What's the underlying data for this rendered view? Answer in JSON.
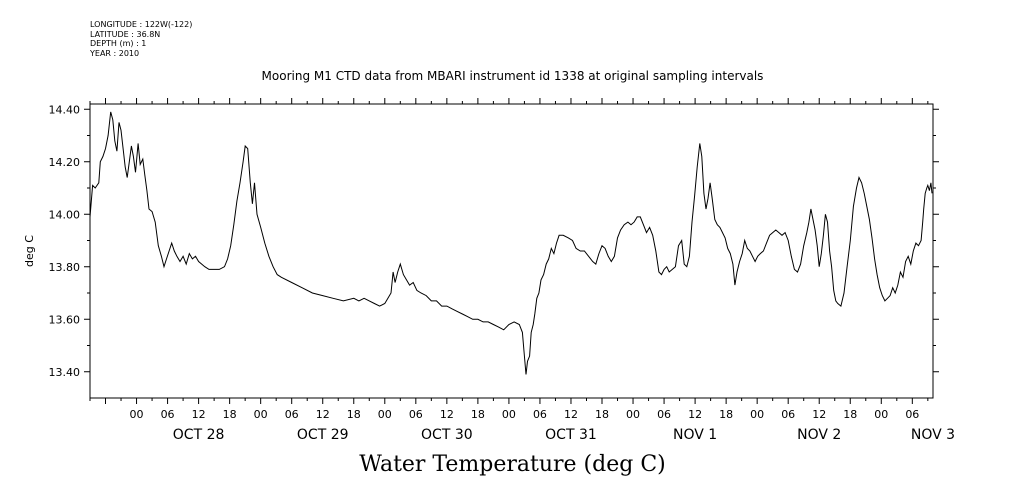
{
  "meta_lines": {
    "longitude": "LONGITUDE : 122W(-122)",
    "latitude": "LATITUDE : 36.8N",
    "depth": "DEPTH (m) : 1",
    "year": "YEAR : 2010"
  },
  "chart_data": {
    "type": "line",
    "title": "Mooring M1 CTD data from MBARI instrument id 1338 at original sampling intervals",
    "xlabel": "Water Temperature (deg C)",
    "ylabel": "deg C",
    "yticks": [
      "13.40",
      "13.60",
      "13.80",
      "14.00",
      "14.20",
      "14.40"
    ],
    "ylim": [
      13.3,
      14.42
    ],
    "xlim_hours": [
      -9,
      154
    ],
    "x_hour_labels": [
      "00",
      "06",
      "12",
      "18",
      "00",
      "06",
      "12",
      "18",
      "00",
      "06",
      "12",
      "18",
      "00",
      "06",
      "12",
      "18",
      "00",
      "06",
      "12",
      "18",
      "00",
      "06",
      "12",
      "18",
      "00",
      "06"
    ],
    "x_day_labels": [
      "OCT 28",
      "OCT 29",
      "OCT 30",
      "OCT 31",
      "NOV  1",
      "NOV  2",
      "NOV  3"
    ],
    "x_unit": "hours since OCT 28 00:00",
    "series": [
      {
        "points": [
          [
            -9,
            13.99
          ],
          [
            -8.5,
            14.11
          ],
          [
            -8,
            14.1
          ],
          [
            -7.3,
            14.12
          ],
          [
            -7,
            14.2
          ],
          [
            -6.5,
            14.22
          ],
          [
            -6,
            14.25
          ],
          [
            -5.5,
            14.3
          ],
          [
            -5,
            14.39
          ],
          [
            -4.6,
            14.36
          ],
          [
            -4.2,
            14.28
          ],
          [
            -3.8,
            14.24
          ],
          [
            -3.4,
            14.35
          ],
          [
            -3,
            14.32
          ],
          [
            -2.6,
            14.25
          ],
          [
            -2.2,
            14.18
          ],
          [
            -1.8,
            14.14
          ],
          [
            -1.4,
            14.2
          ],
          [
            -1,
            14.26
          ],
          [
            -0.6,
            14.22
          ],
          [
            -0.2,
            14.16
          ],
          [
            0.3,
            14.27
          ],
          [
            0.7,
            14.19
          ],
          [
            1.2,
            14.21
          ],
          [
            1.6,
            14.15
          ],
          [
            2,
            14.09
          ],
          [
            2.4,
            14.02
          ],
          [
            3,
            14.01
          ],
          [
            3.6,
            13.97
          ],
          [
            4.2,
            13.88
          ],
          [
            4.8,
            13.84
          ],
          [
            5.3,
            13.8
          ],
          [
            5.8,
            13.83
          ],
          [
            6.3,
            13.86
          ],
          [
            6.8,
            13.89
          ],
          [
            7.3,
            13.86
          ],
          [
            7.8,
            13.84
          ],
          [
            8.4,
            13.82
          ],
          [
            9,
            13.84
          ],
          [
            9.6,
            13.81
          ],
          [
            10.2,
            13.85
          ],
          [
            10.8,
            13.83
          ],
          [
            11.4,
            13.84
          ],
          [
            12,
            13.82
          ],
          [
            12.6,
            13.81
          ],
          [
            13.2,
            13.8
          ],
          [
            14,
            13.79
          ],
          [
            15,
            13.79
          ],
          [
            16,
            13.79
          ],
          [
            17,
            13.8
          ],
          [
            17.6,
            13.83
          ],
          [
            18.2,
            13.88
          ],
          [
            18.8,
            13.96
          ],
          [
            19.4,
            14.05
          ],
          [
            20,
            14.12
          ],
          [
            20.6,
            14.2
          ],
          [
            21,
            14.26
          ],
          [
            21.5,
            14.25
          ],
          [
            22,
            14.12
          ],
          [
            22.4,
            14.04
          ],
          [
            22.8,
            14.12
          ],
          [
            23.3,
            14.0
          ],
          [
            24,
            13.95
          ],
          [
            24.8,
            13.89
          ],
          [
            25.6,
            13.84
          ],
          [
            26.4,
            13.8
          ],
          [
            27.2,
            13.77
          ],
          [
            28,
            13.76
          ],
          [
            30,
            13.74
          ],
          [
            32,
            13.72
          ],
          [
            34,
            13.7
          ],
          [
            36,
            13.69
          ],
          [
            38,
            13.68
          ],
          [
            40,
            13.67
          ],
          [
            42,
            13.68
          ],
          [
            43,
            13.67
          ],
          [
            44,
            13.68
          ],
          [
            45,
            13.67
          ],
          [
            46,
            13.66
          ],
          [
            47,
            13.65
          ],
          [
            48,
            13.66
          ],
          [
            48.6,
            13.68
          ],
          [
            49.2,
            13.7
          ],
          [
            49.6,
            13.78
          ],
          [
            50,
            13.74
          ],
          [
            50.5,
            13.78
          ],
          [
            51,
            13.81
          ],
          [
            51.6,
            13.77
          ],
          [
            52.2,
            13.75
          ],
          [
            52.8,
            13.73
          ],
          [
            53.5,
            13.74
          ],
          [
            54.2,
            13.71
          ],
          [
            55,
            13.7
          ],
          [
            56,
            13.69
          ],
          [
            57,
            13.67
          ],
          [
            58,
            13.67
          ],
          [
            59,
            13.65
          ],
          [
            60,
            13.65
          ],
          [
            61,
            13.64
          ],
          [
            62,
            13.63
          ],
          [
            63,
            13.62
          ],
          [
            64,
            13.61
          ],
          [
            65,
            13.6
          ],
          [
            66,
            13.6
          ],
          [
            67,
            13.59
          ],
          [
            68,
            13.59
          ],
          [
            69,
            13.58
          ],
          [
            70,
            13.57
          ],
          [
            71,
            13.56
          ],
          [
            72,
            13.58
          ],
          [
            73,
            13.59
          ],
          [
            74,
            13.58
          ],
          [
            74.6,
            13.55
          ],
          [
            75,
            13.46
          ],
          [
            75.3,
            13.39
          ],
          [
            75.6,
            13.44
          ],
          [
            76,
            13.46
          ],
          [
            76.3,
            13.55
          ],
          [
            76.7,
            13.58
          ],
          [
            77,
            13.62
          ],
          [
            77.4,
            13.68
          ],
          [
            77.8,
            13.7
          ],
          [
            78.2,
            13.75
          ],
          [
            78.7,
            13.77
          ],
          [
            79.2,
            13.81
          ],
          [
            79.7,
            13.83
          ],
          [
            80.2,
            13.87
          ],
          [
            80.7,
            13.85
          ],
          [
            81.2,
            13.89
          ],
          [
            81.7,
            13.92
          ],
          [
            82.5,
            13.92
          ],
          [
            83.5,
            13.91
          ],
          [
            84.3,
            13.9
          ],
          [
            85,
            13.87
          ],
          [
            85.8,
            13.86
          ],
          [
            86.6,
            13.86
          ],
          [
            87.4,
            13.84
          ],
          [
            88.2,
            13.82
          ],
          [
            88.8,
            13.81
          ],
          [
            89.4,
            13.85
          ],
          [
            90,
            13.88
          ],
          [
            90.6,
            13.87
          ],
          [
            91.2,
            13.84
          ],
          [
            91.8,
            13.82
          ],
          [
            92.4,
            13.84
          ],
          [
            93,
            13.91
          ],
          [
            93.6,
            13.94
          ],
          [
            94.3,
            13.96
          ],
          [
            95,
            13.97
          ],
          [
            95.6,
            13.96
          ],
          [
            96.2,
            13.97
          ],
          [
            96.8,
            13.99
          ],
          [
            97.4,
            13.99
          ],
          [
            98,
            13.96
          ],
          [
            98.6,
            13.93
          ],
          [
            99.2,
            13.95
          ],
          [
            99.8,
            13.92
          ],
          [
            100.4,
            13.86
          ],
          [
            101,
            13.78
          ],
          [
            101.5,
            13.77
          ],
          [
            102,
            13.79
          ],
          [
            102.5,
            13.8
          ],
          [
            103,
            13.78
          ],
          [
            103.6,
            13.79
          ],
          [
            104.2,
            13.8
          ],
          [
            104.8,
            13.88
          ],
          [
            105.4,
            13.9
          ],
          [
            105.9,
            13.81
          ],
          [
            106.4,
            13.8
          ],
          [
            106.9,
            13.84
          ],
          [
            107.4,
            13.97
          ],
          [
            107.9,
            14.07
          ],
          [
            108.4,
            14.18
          ],
          [
            108.9,
            14.27
          ],
          [
            109.3,
            14.22
          ],
          [
            109.7,
            14.08
          ],
          [
            110.1,
            14.02
          ],
          [
            110.5,
            14.06
          ],
          [
            110.9,
            14.12
          ],
          [
            111.3,
            14.06
          ],
          [
            111.8,
            13.98
          ],
          [
            112.3,
            13.96
          ],
          [
            112.8,
            13.95
          ],
          [
            113.3,
            13.93
          ],
          [
            113.8,
            13.91
          ],
          [
            114.3,
            13.87
          ],
          [
            114.8,
            13.85
          ],
          [
            115.3,
            13.81
          ],
          [
            115.7,
            13.73
          ],
          [
            116.1,
            13.78
          ],
          [
            116.6,
            13.82
          ],
          [
            117.1,
            13.85
          ],
          [
            117.6,
            13.9
          ],
          [
            118.1,
            13.87
          ],
          [
            118.6,
            13.86
          ],
          [
            119.1,
            13.84
          ],
          [
            119.6,
            13.82
          ],
          [
            120.1,
            13.84
          ],
          [
            120.6,
            13.85
          ],
          [
            121.2,
            13.86
          ],
          [
            121.8,
            13.89
          ],
          [
            122.4,
            13.92
          ],
          [
            123,
            13.93
          ],
          [
            123.6,
            13.94
          ],
          [
            124.2,
            13.93
          ],
          [
            124.8,
            13.92
          ],
          [
            125.4,
            13.93
          ],
          [
            126,
            13.9
          ],
          [
            126.6,
            13.84
          ],
          [
            127.2,
            13.79
          ],
          [
            127.8,
            13.78
          ],
          [
            128.4,
            13.81
          ],
          [
            129,
            13.88
          ],
          [
            129.6,
            13.93
          ],
          [
            130,
            13.97
          ],
          [
            130.4,
            14.02
          ],
          [
            130.8,
            13.98
          ],
          [
            131.2,
            13.94
          ],
          [
            131.6,
            13.88
          ],
          [
            132,
            13.8
          ],
          [
            132.4,
            13.85
          ],
          [
            132.8,
            13.92
          ],
          [
            133.2,
            14.0
          ],
          [
            133.6,
            13.97
          ],
          [
            134,
            13.86
          ],
          [
            134.4,
            13.8
          ],
          [
            134.8,
            13.71
          ],
          [
            135.2,
            13.67
          ],
          [
            135.6,
            13.66
          ],
          [
            136.2,
            13.65
          ],
          [
            136.8,
            13.7
          ],
          [
            137.4,
            13.8
          ],
          [
            138,
            13.9
          ],
          [
            138.6,
            14.03
          ],
          [
            139.2,
            14.1
          ],
          [
            139.7,
            14.14
          ],
          [
            140.2,
            14.12
          ],
          [
            140.7,
            14.08
          ],
          [
            141.2,
            14.03
          ],
          [
            141.7,
            13.98
          ],
          [
            142.2,
            13.91
          ],
          [
            142.7,
            13.83
          ],
          [
            143.2,
            13.77
          ],
          [
            143.7,
            13.72
          ],
          [
            144.2,
            13.69
          ],
          [
            144.7,
            13.67
          ],
          [
            145.2,
            13.68
          ],
          [
            145.7,
            13.69
          ],
          [
            146.2,
            13.72
          ],
          [
            146.7,
            13.7
          ],
          [
            147.2,
            13.73
          ],
          [
            147.7,
            13.78
          ],
          [
            148.2,
            13.76
          ],
          [
            148.7,
            13.82
          ],
          [
            149.2,
            13.84
          ],
          [
            149.7,
            13.81
          ],
          [
            150.2,
            13.86
          ],
          [
            150.7,
            13.89
          ],
          [
            151.2,
            13.88
          ],
          [
            151.7,
            13.9
          ],
          [
            152,
            13.97
          ],
          [
            152.2,
            14.02
          ],
          [
            152.5,
            14.08
          ],
          [
            152.8,
            14.1
          ],
          [
            153,
            14.11
          ],
          [
            153.3,
            14.09
          ],
          [
            153.6,
            14.12
          ],
          [
            153.8,
            14.08
          ]
        ]
      }
    ]
  }
}
